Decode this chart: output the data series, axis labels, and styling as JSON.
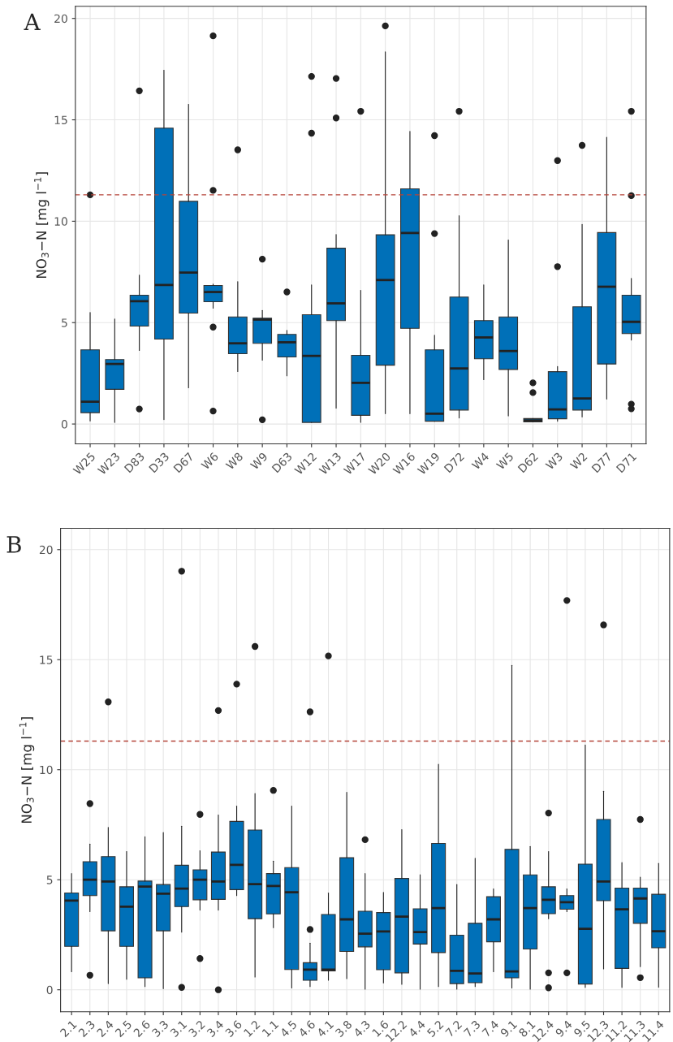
{
  "chart_data": [
    {
      "type": "box",
      "annotations": [
        "A"
      ],
      "ylabel": "NO$_{3}$−N [mg l$^{−1}$]",
      "ylim": [
        -0.98,
        20.6
      ],
      "yticks": [
        0,
        5,
        10,
        15,
        20
      ],
      "grid": true,
      "color": "#0070b8",
      "ref_lines": [
        {
          "axis": "y",
          "value": 11.3,
          "color": "#b5443a",
          "line_style": "dashed"
        }
      ],
      "categories": [
        "W25",
        "W23",
        "D83",
        "D33",
        "D67",
        "W6",
        "W8",
        "W9",
        "D63",
        "W12",
        "W13",
        "W17",
        "W20",
        "W16",
        "W19",
        "D72",
        "W4",
        "W5",
        "D62",
        "W3",
        "W2",
        "D77",
        "D71"
      ],
      "boxes": [
        {
          "low": 0.15,
          "q1": 0.56,
          "median": 1.1,
          "q3": 3.66,
          "high": 5.5,
          "outliers": [
            11.3
          ]
        },
        {
          "low": 0.08,
          "q1": 1.71,
          "median": 2.96,
          "q3": 3.18,
          "high": 5.18
        },
        {
          "low": 3.63,
          "q1": 4.83,
          "median": 6.06,
          "q3": 6.35,
          "high": 7.34,
          "outliers": [
            16.43,
            0.74
          ]
        },
        {
          "low": 0.22,
          "q1": 4.19,
          "median": 6.86,
          "q3": 14.59,
          "high": 17.44
        },
        {
          "low": 1.79,
          "q1": 5.47,
          "median": 7.47,
          "q3": 10.98,
          "high": 15.76
        },
        {
          "low": 5.71,
          "q1": 6.03,
          "median": 6.51,
          "q3": 6.83,
          "high": 6.9,
          "outliers": [
            19.14,
            11.52,
            4.78,
            0.64
          ]
        },
        {
          "low": 2.59,
          "q1": 3.47,
          "median": 3.98,
          "q3": 5.28,
          "high": 7.02,
          "outliers": [
            13.52
          ]
        },
        {
          "low": 3.15,
          "q1": 3.98,
          "median": 5.15,
          "q3": 5.22,
          "high": 5.6,
          "outliers": [
            8.13,
            0.21
          ]
        },
        {
          "low": 2.38,
          "q1": 3.31,
          "median": 4.03,
          "q3": 4.42,
          "high": 4.62,
          "outliers": [
            6.51
          ]
        },
        {
          "low": 0.08,
          "q1": 0.08,
          "median": 3.36,
          "q3": 5.39,
          "high": 6.86,
          "outliers": [
            17.14,
            14.34
          ]
        },
        {
          "low": 0.78,
          "q1": 5.1,
          "median": 5.95,
          "q3": 8.67,
          "high": 9.34,
          "outliers": [
            17.04,
            15.09
          ]
        },
        {
          "low": 0.08,
          "q1": 0.43,
          "median": 2.03,
          "q3": 3.39,
          "high": 6.59,
          "outliers": [
            15.42
          ]
        },
        {
          "low": 0.51,
          "q1": 2.9,
          "median": 7.1,
          "q3": 9.33,
          "high": 18.35,
          "outliers": [
            19.63
          ]
        },
        {
          "low": 0.51,
          "q1": 4.72,
          "median": 9.42,
          "q3": 11.6,
          "high": 14.43
        },
        {
          "low": 0.14,
          "q1": 0.14,
          "median": 0.51,
          "q3": 3.66,
          "high": 4.38,
          "outliers": [
            14.22,
            9.39
          ]
        },
        {
          "low": 0.3,
          "q1": 0.69,
          "median": 2.74,
          "q3": 6.26,
          "high": 10.27,
          "outliers": [
            15.42
          ]
        },
        {
          "low": 2.19,
          "q1": 3.22,
          "median": 4.27,
          "q3": 5.1,
          "high": 6.86
        },
        {
          "low": 0.4,
          "q1": 2.69,
          "median": 3.6,
          "q3": 5.28,
          "high": 9.07
        },
        {
          "low": 0.11,
          "q1": 0.11,
          "median": 0.18,
          "q3": 0.27,
          "high": 0.27,
          "outliers": [
            2.03,
            1.55
          ]
        },
        {
          "low": 0.14,
          "q1": 0.26,
          "median": 0.72,
          "q3": 2.58,
          "high": 2.83,
          "outliers": [
            12.99,
            7.76
          ]
        },
        {
          "low": 0.35,
          "q1": 0.69,
          "median": 1.26,
          "q3": 5.78,
          "high": 9.84,
          "outliers": [
            13.74
          ]
        },
        {
          "low": 1.23,
          "q1": 2.96,
          "median": 6.77,
          "q3": 9.44,
          "high": 14.14
        },
        {
          "low": 4.14,
          "q1": 4.46,
          "median": 5.04,
          "q3": 6.35,
          "high": 7.18,
          "outliers": [
            15.42,
            11.26,
            0.98,
            0.75
          ]
        }
      ]
    },
    {
      "type": "box",
      "annotations": [
        "B"
      ],
      "ylabel": "NO$_{3}$−N [mg l$^{−1}$]",
      "ylim": [
        -1.0,
        20.97
      ],
      "yticks": [
        0,
        5,
        10,
        15,
        20
      ],
      "grid": true,
      "color": "#0070b8",
      "ref_lines": [
        {
          "axis": "y",
          "value": 11.3,
          "color": "#b5443a",
          "line_style": "dashed"
        }
      ],
      "categories": [
        "2.1",
        "2.3",
        "2.4",
        "2.5",
        "2.6",
        "3.3",
        "3.1",
        "3.2",
        "3.4",
        "3.6",
        "1.2",
        "1.1",
        "4.5",
        "4.6",
        "4.1",
        "3.8",
        "4.3",
        "1.6",
        "12.2",
        "4.4",
        "5.2",
        "7.2",
        "7.3",
        "7.4",
        "9.1",
        "8.1",
        "12.4",
        "9.4",
        "9.5",
        "12.3",
        "11.2",
        "11.3",
        "11.4"
      ],
      "boxes": [
        {
          "low": 0.82,
          "q1": 1.97,
          "median": 4.05,
          "q3": 4.4,
          "high": 5.28
        },
        {
          "low": 3.55,
          "q1": 4.28,
          "median": 5.0,
          "q3": 5.82,
          "high": 6.62,
          "outliers": [
            8.46,
            0.66
          ]
        },
        {
          "low": 0.28,
          "q1": 2.68,
          "median": 4.92,
          "q3": 6.05,
          "high": 7.38,
          "outliers": [
            13.08
          ]
        },
        {
          "low": 0.48,
          "q1": 1.97,
          "median": 3.78,
          "q3": 4.68,
          "high": 6.28
        },
        {
          "low": 0.15,
          "q1": 0.54,
          "median": 4.69,
          "q3": 4.94,
          "high": 6.95
        },
        {
          "low": 0.05,
          "q1": 2.68,
          "median": 4.37,
          "q3": 4.78,
          "high": 7.15
        },
        {
          "low": 2.62,
          "q1": 3.78,
          "median": 4.6,
          "q3": 5.66,
          "high": 7.43,
          "outliers": [
            19.02,
            0.11
          ]
        },
        {
          "low": 3.62,
          "q1": 4.09,
          "median": 5.0,
          "q3": 5.45,
          "high": 6.32,
          "outliers": [
            7.97,
            1.42
          ]
        },
        {
          "low": 3.62,
          "q1": 4.11,
          "median": 4.92,
          "q3": 6.26,
          "high": 7.94,
          "outliers": [
            12.69,
            0.0
          ]
        },
        {
          "low": 4.28,
          "q1": 4.55,
          "median": 5.68,
          "q3": 7.65,
          "high": 8.35,
          "outliers": [
            13.89
          ]
        },
        {
          "low": 0.58,
          "q1": 3.23,
          "median": 4.8,
          "q3": 7.26,
          "high": 8.92,
          "outliers": [
            15.6
          ]
        },
        {
          "low": 2.82,
          "q1": 3.45,
          "median": 4.72,
          "q3": 5.28,
          "high": 5.85,
          "outliers": [
            9.06
          ]
        },
        {
          "low": 0.08,
          "q1": 0.92,
          "median": 4.43,
          "q3": 5.55,
          "high": 8.35
        },
        {
          "low": 0.15,
          "q1": 0.43,
          "median": 0.92,
          "q3": 1.23,
          "high": 2.12,
          "outliers": [
            2.74,
            12.63
          ]
        },
        {
          "low": 0.43,
          "q1": 0.86,
          "median": 0.92,
          "q3": 3.42,
          "high": 4.4,
          "outliers": [
            15.17
          ]
        },
        {
          "low": 0.51,
          "q1": 1.74,
          "median": 3.2,
          "q3": 6.0,
          "high": 8.97
        },
        {
          "low": 0.03,
          "q1": 1.95,
          "median": 2.55,
          "q3": 3.57,
          "high": 5.28,
          "outliers": [
            6.82
          ]
        },
        {
          "low": 0.31,
          "q1": 0.91,
          "median": 2.65,
          "q3": 3.51,
          "high": 4.42
        },
        {
          "low": 0.25,
          "q1": 0.77,
          "median": 3.32,
          "q3": 5.06,
          "high": 7.28
        },
        {
          "low": 0.03,
          "q1": 2.08,
          "median": 2.62,
          "q3": 3.68,
          "high": 5.23
        },
        {
          "low": 0.15,
          "q1": 1.69,
          "median": 3.71,
          "q3": 6.65,
          "high": 10.25
        },
        {
          "low": 0.03,
          "q1": 0.28,
          "median": 0.86,
          "q3": 2.48,
          "high": 4.78
        },
        {
          "low": 0.15,
          "q1": 0.32,
          "median": 0.74,
          "q3": 3.02,
          "high": 5.97
        },
        {
          "low": 0.82,
          "q1": 2.18,
          "median": 3.2,
          "q3": 4.23,
          "high": 4.58
        },
        {
          "low": 0.08,
          "q1": 0.54,
          "median": 0.83,
          "q3": 6.38,
          "high": 14.74
        },
        {
          "low": 0.03,
          "q1": 1.85,
          "median": 3.71,
          "q3": 5.22,
          "high": 6.51
        },
        {
          "low": 3.23,
          "q1": 3.46,
          "median": 4.09,
          "q3": 4.68,
          "high": 6.28,
          "outliers": [
            8.03,
            0.77,
            0.09
          ]
        },
        {
          "low": 3.55,
          "q1": 3.66,
          "median": 3.98,
          "q3": 4.28,
          "high": 4.58,
          "outliers": [
            17.69,
            0.77
          ]
        },
        {
          "low": 0.11,
          "q1": 0.26,
          "median": 2.77,
          "q3": 5.71,
          "high": 11.12
        },
        {
          "low": 0.95,
          "q1": 4.05,
          "median": 4.92,
          "q3": 7.74,
          "high": 9.02,
          "outliers": [
            16.58
          ]
        },
        {
          "low": 0.11,
          "q1": 0.97,
          "median": 3.66,
          "q3": 4.62,
          "high": 5.78
        },
        {
          "low": 1.05,
          "q1": 3.02,
          "median": 4.15,
          "q3": 4.62,
          "high": 5.12,
          "outliers": [
            7.74,
            0.55
          ]
        },
        {
          "low": 0.12,
          "q1": 1.91,
          "median": 2.66,
          "q3": 4.34,
          "high": 5.74
        }
      ]
    }
  ]
}
